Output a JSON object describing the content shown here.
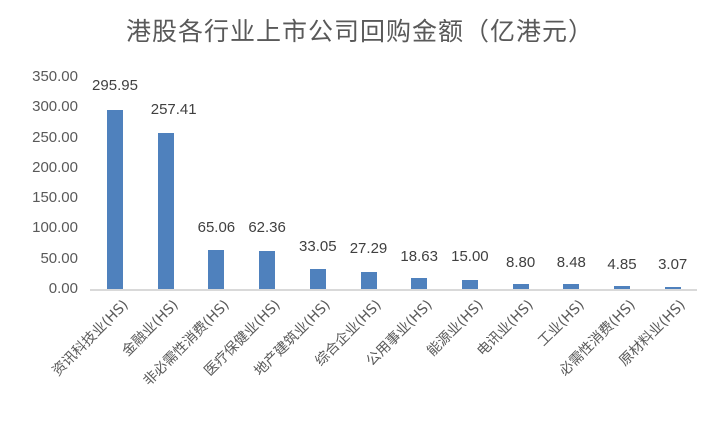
{
  "chart_data": {
    "type": "bar",
    "title": "港股各行业上市公司回购金额（亿港元）",
    "xlabel": "",
    "ylabel": "",
    "ylim": [
      0,
      350
    ],
    "yticks": [
      "0.00",
      "50.00",
      "100.00",
      "150.00",
      "200.00",
      "250.00",
      "300.00",
      "350.00"
    ],
    "grid": false,
    "legend": null,
    "bar_color": "#4f81bd",
    "categories": [
      "资讯科技业(HS)",
      "金融业(HS)",
      "非必需性消费(HS)",
      "医疗保健业(HS)",
      "地产建筑业(HS)",
      "综合企业(HS)",
      "公用事业(HS)",
      "能源业(HS)",
      "电讯业(HS)",
      "工业(HS)",
      "必需性消费(HS)",
      "原材料业(HS)"
    ],
    "values": [
      295.95,
      257.41,
      65.06,
      62.36,
      33.05,
      27.29,
      18.63,
      15.0,
      8.8,
      8.48,
      4.85,
      3.07
    ],
    "data_labels": [
      "295.95",
      "257.41",
      "65.06",
      "62.36",
      "33.05",
      "27.29",
      "18.63",
      "15.00",
      "8.80",
      "8.48",
      "4.85",
      "3.07"
    ]
  }
}
